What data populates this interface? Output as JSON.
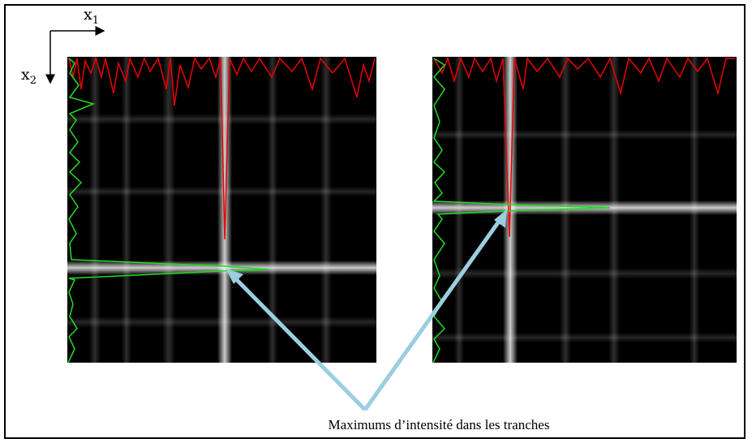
{
  "axes": {
    "horizontal": {
      "symbol": "x",
      "index": "1"
    },
    "vertical": {
      "symbol": "x",
      "index": "2"
    }
  },
  "caption": "Maximums d’intensité dans les tranches"
}
